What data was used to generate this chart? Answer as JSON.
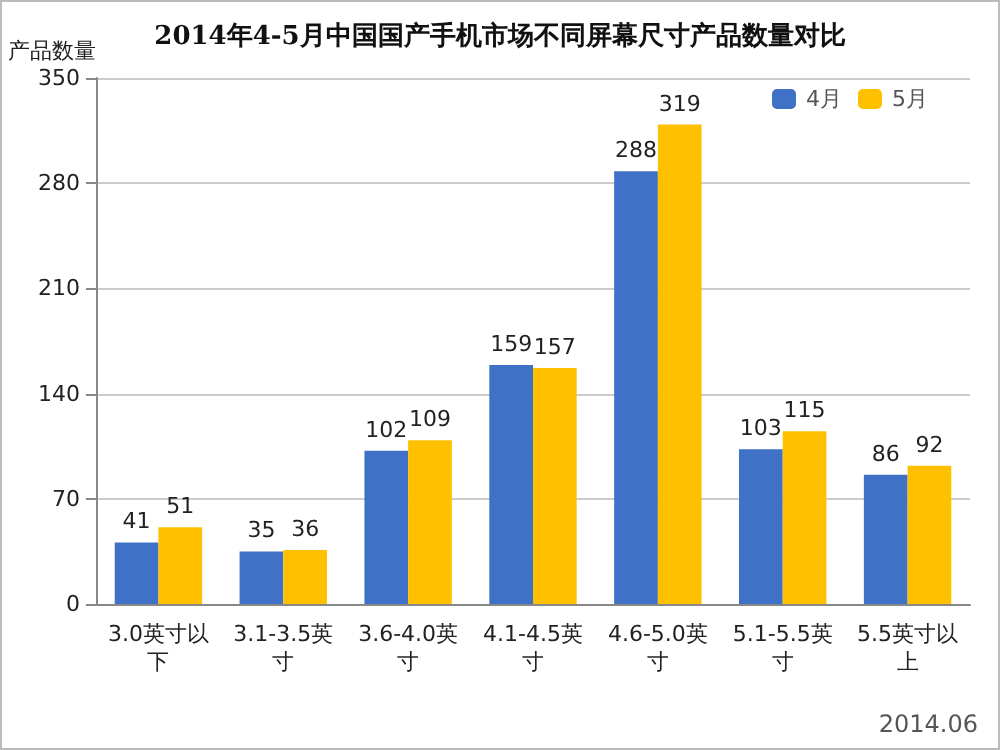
{
  "chart_data": {
    "type": "bar",
    "title": "2014年4-5月中国国产手机市场不同屏幕尺寸产品数量对比",
    "ylabel": "产品数量",
    "categories": [
      "3.0英寸以下",
      "3.1-3.5英寸",
      "3.6-4.0英寸",
      "4.1-4.5英寸",
      "4.6-5.0英寸",
      "5.1-5.5英寸",
      "5.5英寸以上"
    ],
    "series": [
      {
        "name": "4月",
        "color": "#3f72c6",
        "values": [
          41,
          35,
          102,
          159,
          288,
          103,
          86
        ]
      },
      {
        "name": "5月",
        "color": "#ffc000",
        "values": [
          51,
          36,
          109,
          157,
          319,
          115,
          92
        ]
      }
    ],
    "ylim": [
      0,
      350
    ],
    "yticks": [
      0,
      70,
      140,
      210,
      280,
      350
    ],
    "grid": "y",
    "legend": "top right",
    "data_labels": true,
    "annotations": [
      "2014.06"
    ]
  }
}
